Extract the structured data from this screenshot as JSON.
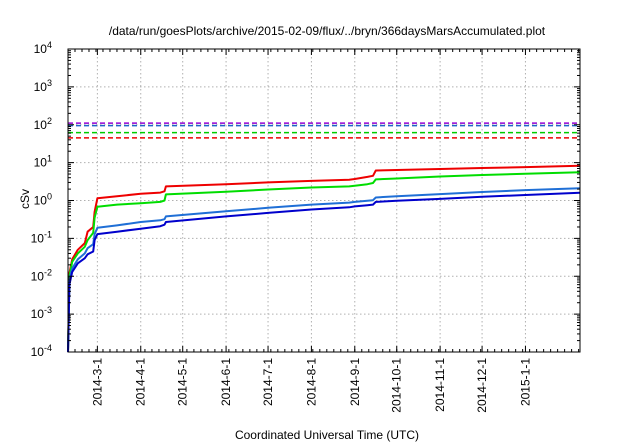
{
  "chart_data": {
    "type": "line",
    "title": "/data/run/goesPlots/archive/2015-02-09/flux/../bryn/366daysMarsAccumulated.plot",
    "xlabel": "Coordinated Universal Time (UTC)",
    "ylabel": "cSv",
    "yscale": "log",
    "ylim": [
      0.0001,
      10000
    ],
    "xlim": [
      "2014-02-08",
      "2015-02-09"
    ],
    "grid": true,
    "legend": "none",
    "x_ticks": [
      "2014-3-1",
      "2014-4-1",
      "2014-5-1",
      "2014-6-1",
      "2014-7-1",
      "2014-8-1",
      "2014-9-1",
      "2014-10-1",
      "2014-11-1",
      "2014-12-1",
      "2015-1-1"
    ],
    "y_ticks": [
      {
        "base": "10",
        "exp": "-4",
        "value": 0.0001
      },
      {
        "base": "10",
        "exp": "-3",
        "value": 0.001
      },
      {
        "base": "10",
        "exp": "-2",
        "value": 0.01
      },
      {
        "base": "10",
        "exp": "-1",
        "value": 0.1
      },
      {
        "base": "10",
        "exp": "0",
        "value": 1
      },
      {
        "base": "10",
        "exp": "1",
        "value": 10
      },
      {
        "base": "10",
        "exp": "2",
        "value": 100
      },
      {
        "base": "10",
        "exp": "3",
        "value": 1000
      },
      {
        "base": "10",
        "exp": "4",
        "value": 10000
      }
    ],
    "thresholds": [
      {
        "color": "#9400d3",
        "value": 110
      },
      {
        "color": "#1f63c9",
        "value": 95
      },
      {
        "color": "#00cc00",
        "value": 62
      },
      {
        "color": "#ee0000",
        "value": 45
      }
    ],
    "series": [
      {
        "color": "#ee0000",
        "x": [
          "2014-02-08",
          "2014-02-09",
          "2014-02-11",
          "2014-02-15",
          "2014-02-20",
          "2014-02-22",
          "2014-02-26",
          "2014-02-27",
          "2014-03-01",
          "2014-03-15",
          "2014-04-01",
          "2014-04-15",
          "2014-04-18",
          "2014-04-19",
          "2014-06-01",
          "2014-07-01",
          "2014-08-01",
          "2014-08-28",
          "2014-09-01",
          "2014-09-10",
          "2014-09-14",
          "2014-09-16",
          "2014-10-01",
          "2014-11-01",
          "2014-12-01",
          "2015-01-01",
          "2015-02-09"
        ],
        "y": [
          0.0001,
          0.012,
          0.028,
          0.05,
          0.075,
          0.15,
          0.2,
          0.5,
          1.15,
          1.3,
          1.5,
          1.62,
          1.75,
          2.35,
          2.7,
          3.0,
          3.3,
          3.55,
          3.7,
          4.2,
          4.5,
          6.2,
          6.4,
          6.8,
          7.2,
          7.6,
          8.3
        ]
      },
      {
        "color": "#00dd00",
        "x": [
          "2014-02-08",
          "2014-02-09",
          "2014-02-11",
          "2014-02-15",
          "2014-02-20",
          "2014-02-22",
          "2014-02-26",
          "2014-02-27",
          "2014-03-01",
          "2014-03-15",
          "2014-04-01",
          "2014-04-15",
          "2014-04-18",
          "2014-04-19",
          "2014-06-01",
          "2014-07-01",
          "2014-08-01",
          "2014-08-28",
          "2014-09-01",
          "2014-09-10",
          "2014-09-14",
          "2014-09-16",
          "2014-10-01",
          "2014-11-01",
          "2014-12-01",
          "2015-01-01",
          "2015-02-09"
        ],
        "y": [
          0.0001,
          0.01,
          0.024,
          0.04,
          0.06,
          0.09,
          0.14,
          0.35,
          0.68,
          0.78,
          0.85,
          0.92,
          1.0,
          1.45,
          1.7,
          1.95,
          2.2,
          2.35,
          2.45,
          2.7,
          2.9,
          3.6,
          3.8,
          4.3,
          4.7,
          5.1,
          5.6
        ]
      },
      {
        "color": "#1f6fd6",
        "x": [
          "2014-02-08",
          "2014-02-09",
          "2014-02-11",
          "2014-02-15",
          "2014-02-20",
          "2014-02-22",
          "2014-02-26",
          "2014-02-27",
          "2014-03-01",
          "2014-03-15",
          "2014-04-01",
          "2014-04-15",
          "2014-04-18",
          "2014-04-19",
          "2014-06-01",
          "2014-07-01",
          "2014-08-01",
          "2014-08-28",
          "2014-09-01",
          "2014-09-10",
          "2014-09-14",
          "2014-09-16",
          "2014-10-01",
          "2014-11-01",
          "2014-12-01",
          "2015-01-01",
          "2015-02-09"
        ],
        "y": [
          0.0001,
          0.008,
          0.016,
          0.028,
          0.04,
          0.055,
          0.07,
          0.13,
          0.19,
          0.22,
          0.27,
          0.3,
          0.32,
          0.38,
          0.52,
          0.64,
          0.78,
          0.88,
          0.92,
          0.98,
          1.02,
          1.2,
          1.3,
          1.48,
          1.68,
          1.88,
          2.1
        ]
      },
      {
        "color": "#0000cc",
        "x": [
          "2014-02-08",
          "2014-02-09",
          "2014-02-11",
          "2014-02-15",
          "2014-02-20",
          "2014-02-22",
          "2014-02-26",
          "2014-02-27",
          "2014-03-01",
          "2014-03-15",
          "2014-04-01",
          "2014-04-15",
          "2014-04-18",
          "2014-04-19",
          "2014-06-01",
          "2014-07-01",
          "2014-08-01",
          "2014-08-28",
          "2014-09-01",
          "2014-09-10",
          "2014-09-14",
          "2014-09-16",
          "2014-10-01",
          "2014-11-01",
          "2014-12-01",
          "2015-01-01",
          "2015-02-09"
        ],
        "y": [
          0.0001,
          0.006,
          0.013,
          0.022,
          0.03,
          0.038,
          0.045,
          0.09,
          0.13,
          0.15,
          0.18,
          0.21,
          0.23,
          0.27,
          0.38,
          0.47,
          0.58,
          0.66,
          0.7,
          0.75,
          0.78,
          0.92,
          0.98,
          1.1,
          1.25,
          1.4,
          1.6
        ]
      }
    ]
  }
}
